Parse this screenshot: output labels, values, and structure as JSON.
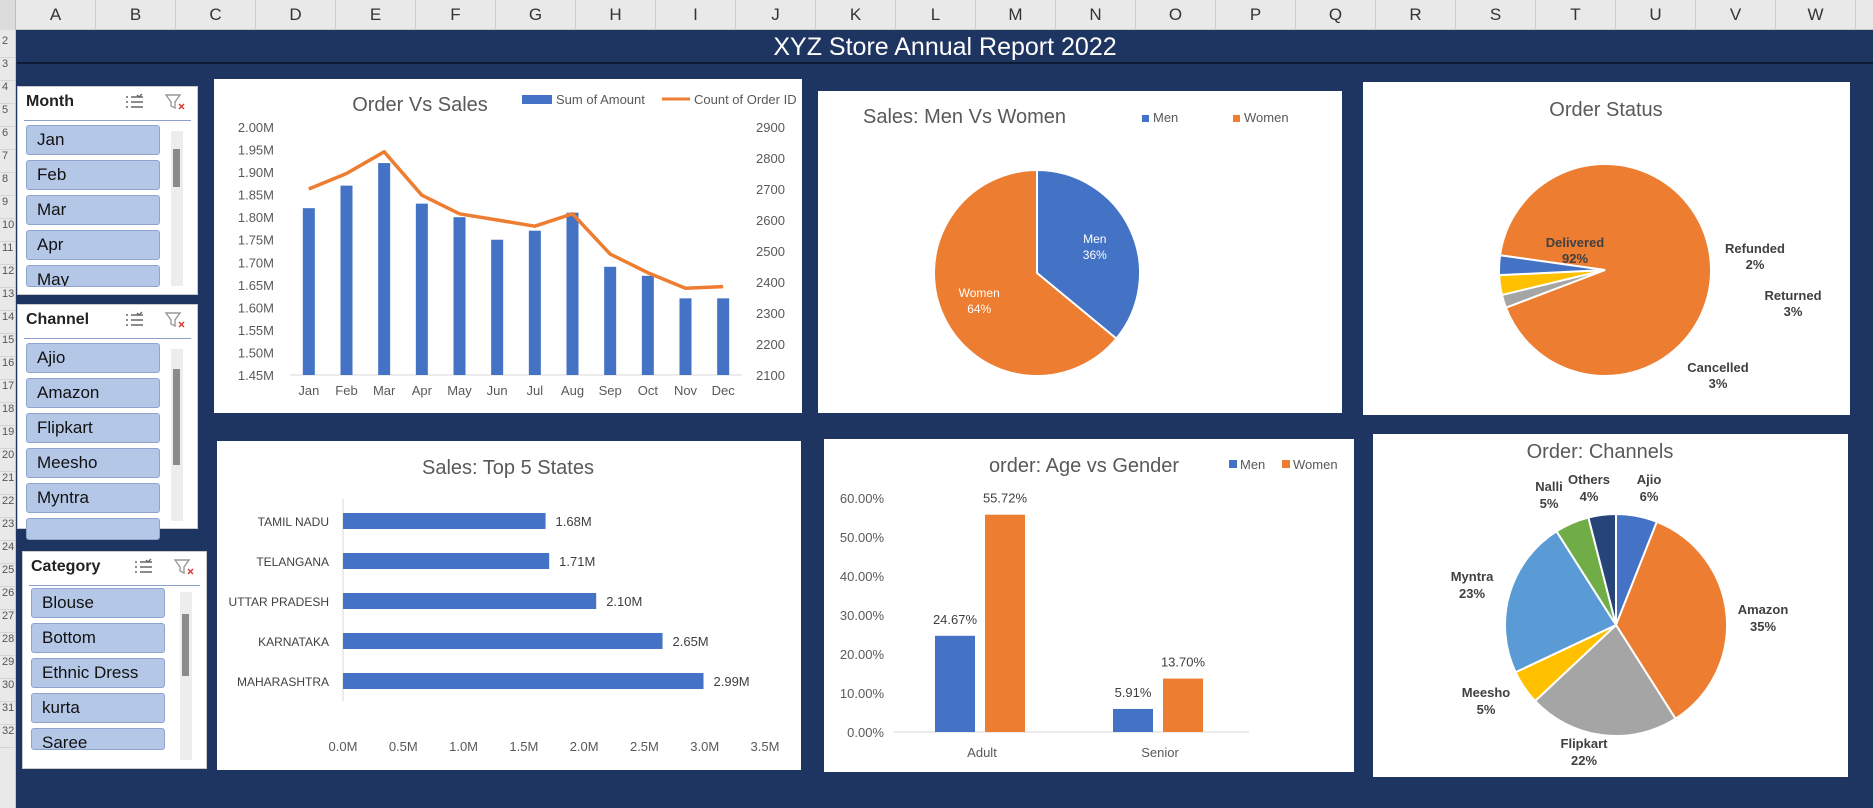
{
  "columns": [
    "A",
    "B",
    "C",
    "D",
    "E",
    "F",
    "G",
    "H",
    "I",
    "J",
    "K",
    "L",
    "M",
    "N",
    "O",
    "P",
    "Q",
    "R",
    "S",
    "T",
    "U",
    "V",
    "W"
  ],
  "rows": [
    "2",
    "3",
    "4",
    "5",
    "6",
    "7",
    "8",
    "9",
    "10",
    "11",
    "12",
    "13",
    "14",
    "15",
    "16",
    "17",
    "18",
    "19",
    "20",
    "21",
    "22",
    "23",
    "24",
    "25",
    "26",
    "27",
    "28",
    "29",
    "30",
    "31",
    "32"
  ],
  "dashboard_title": "XYZ  Store Annual Report 2022",
  "colors": {
    "men": "#4472c4",
    "women": "#ed7d31",
    "grey": "#a5a5a5",
    "yellow": "#ffc000",
    "lightblue": "#5b9bd5",
    "green": "#70ad47",
    "navy": "#264478",
    "background": "#1e3461"
  },
  "slicers": {
    "month": {
      "title": "Month",
      "items": [
        "Jan",
        "Feb",
        "Mar",
        "Apr",
        "May"
      ]
    },
    "channel": {
      "title": "Channel",
      "items": [
        "Ajio",
        "Amazon",
        "Flipkart",
        "Meesho",
        "Myntra",
        ""
      ]
    },
    "category": {
      "title": "Category",
      "items": [
        "Blouse",
        "Bottom",
        "Ethnic Dress",
        "kurta",
        "Saree"
      ]
    }
  },
  "chart_data": [
    {
      "id": "order-vs-sales",
      "type": "bar",
      "title": "Order  Vs Sales",
      "categories": [
        "Jan",
        "Feb",
        "Mar",
        "Apr",
        "May",
        "Jun",
        "Jul",
        "Aug",
        "Sep",
        "Oct",
        "Nov",
        "Dec"
      ],
      "series": [
        {
          "name": "Sum of Amount",
          "type": "bar",
          "axis": "left",
          "values": [
            1.82,
            1.87,
            1.92,
            1.83,
            1.8,
            1.75,
            1.77,
            1.81,
            1.69,
            1.67,
            1.62,
            1.62
          ]
        },
        {
          "name": "Count of Order ID",
          "type": "line",
          "axis": "right",
          "values": [
            2700,
            2750,
            2820,
            2680,
            2620,
            2600,
            2580,
            2620,
            2490,
            2430,
            2380,
            2385
          ]
        }
      ],
      "y_left": {
        "min": 1.45,
        "max": 2.0,
        "ticks": [
          "1.45M",
          "1.50M",
          "1.55M",
          "1.60M",
          "1.65M",
          "1.70M",
          "1.75M",
          "1.80M",
          "1.85M",
          "1.90M",
          "1.95M",
          "2.00M"
        ]
      },
      "y_right": {
        "min": 2100,
        "max": 2900,
        "ticks": [
          "2100",
          "2200",
          "2300",
          "2400",
          "2500",
          "2600",
          "2700",
          "2800",
          "2900"
        ]
      },
      "grid": false,
      "legend": "top"
    },
    {
      "id": "sales-men-women",
      "type": "pie",
      "title": "Sales: Men Vs Women",
      "legend": [
        "Men",
        "Women"
      ],
      "slices": [
        {
          "label": "Men",
          "value": 36,
          "display": "36%"
        },
        {
          "label": "Women",
          "value": 64,
          "display": "64%"
        }
      ]
    },
    {
      "id": "order-status",
      "type": "pie",
      "title": "Order Status",
      "slices": [
        {
          "label": "Delivered",
          "value": 92,
          "display": "92%"
        },
        {
          "label": "Refunded",
          "value": 2,
          "display": "2%"
        },
        {
          "label": "Returned",
          "value": 3,
          "display": "3%"
        },
        {
          "label": "Cancelled",
          "value": 3,
          "display": "3%"
        }
      ]
    },
    {
      "id": "top-5-states",
      "type": "bar",
      "orientation": "horizontal",
      "title": "Sales: Top 5 States",
      "categories": [
        "TAMIL NADU",
        "TELANGANA",
        "UTTAR PRADESH",
        "KARNATAKA",
        "MAHARASHTRA"
      ],
      "values": [
        1.68,
        1.71,
        2.1,
        2.65,
        2.99
      ],
      "data_labels": [
        "1.68M",
        "1.71M",
        "2.10M",
        "2.65M",
        "2.99M"
      ],
      "xlim": [
        0,
        3.5
      ],
      "x_ticks": [
        "0.0M",
        "0.5M",
        "1.0M",
        "1.5M",
        "2.0M",
        "2.5M",
        "3.0M",
        "3.5M"
      ]
    },
    {
      "id": "age-vs-gender",
      "type": "bar",
      "title": "order: Age vs Gender",
      "categories": [
        "Adult",
        "Senior"
      ],
      "series": [
        {
          "name": "Men",
          "values": [
            24.67,
            5.91
          ],
          "labels": [
            "24.67%",
            "5.91%"
          ]
        },
        {
          "name": "Women",
          "values": [
            55.72,
            13.7
          ],
          "labels": [
            "55.72%",
            "13.70%"
          ]
        }
      ],
      "ylim": [
        0,
        60
      ],
      "y_ticks": [
        "0.00%",
        "10.00%",
        "20.00%",
        "30.00%",
        "40.00%",
        "50.00%",
        "60.00%"
      ],
      "legend": "top-right"
    },
    {
      "id": "order-channels",
      "type": "pie",
      "title": "Order: Channels",
      "slices": [
        {
          "label": "Ajio",
          "value": 6,
          "display": "6%"
        },
        {
          "label": "Amazon",
          "value": 35,
          "display": "35%"
        },
        {
          "label": "Flipkart",
          "value": 22,
          "display": "22%"
        },
        {
          "label": "Meesho",
          "value": 5,
          "display": "5%"
        },
        {
          "label": "Myntra",
          "value": 23,
          "display": "23%"
        },
        {
          "label": "Nalli",
          "value": 5,
          "display": "5%"
        },
        {
          "label": "Others",
          "value": 4,
          "display": "4%"
        }
      ]
    }
  ]
}
